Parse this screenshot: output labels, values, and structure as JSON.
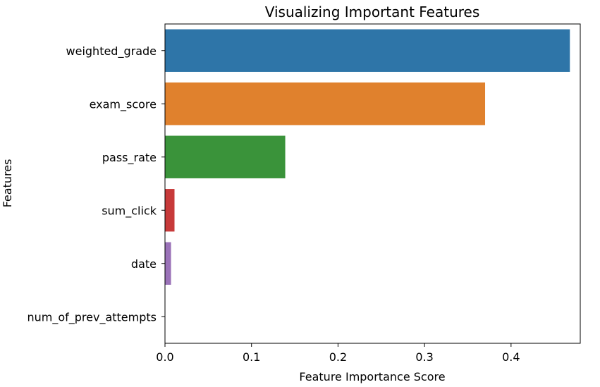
{
  "chart_data": {
    "type": "bar",
    "orientation": "horizontal",
    "title": "Visualizing Important Features",
    "xlabel": "Feature Importance Score",
    "ylabel": "Features",
    "categories": [
      "weighted_grade",
      "exam_score",
      "pass_rate",
      "sum_click",
      "date",
      "num_of_prev_attempts"
    ],
    "values": [
      0.468,
      0.37,
      0.139,
      0.011,
      0.007,
      0.0
    ],
    "colors": [
      "#2e75a8",
      "#e0812d",
      "#3a933a",
      "#c73a3a",
      "#9a72b8",
      "#8c564b"
    ],
    "xlim": [
      0.0,
      0.48
    ],
    "xticks": [
      0.0,
      0.1,
      0.2,
      0.3,
      0.4
    ],
    "xtick_labels": [
      "0.0",
      "0.1",
      "0.2",
      "0.3",
      "0.4"
    ],
    "grid": false,
    "legend": false
  }
}
